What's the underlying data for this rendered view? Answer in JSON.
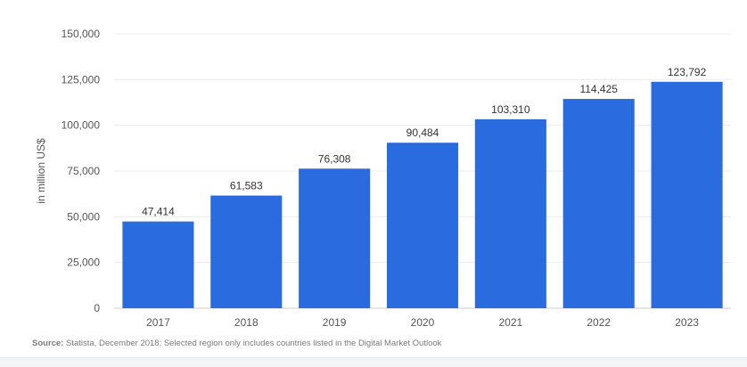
{
  "chart_data": {
    "type": "bar",
    "categories": [
      "2017",
      "2018",
      "2019",
      "2020",
      "2021",
      "2022",
      "2023"
    ],
    "values": [
      47414,
      61583,
      76308,
      90484,
      103310,
      114425,
      123792
    ],
    "value_labels": [
      "47,414",
      "61,583",
      "76,308",
      "90,484",
      "103,310",
      "114,425",
      "123,792"
    ],
    "ylabel": "in million US$",
    "ylim": [
      0,
      150000
    ],
    "yticks": [
      0,
      25000,
      50000,
      75000,
      100000,
      125000,
      150000
    ],
    "ytick_labels": [
      "0",
      "25,000",
      "50,000",
      "75,000",
      "100,000",
      "125,000",
      "150,000"
    ],
    "grid": true,
    "bar_color": "#2b6be0"
  },
  "source": {
    "label": "Source:",
    "text": "Statista, December 2018; Selected region only includes countries listed in the Digital Market Outlook"
  }
}
